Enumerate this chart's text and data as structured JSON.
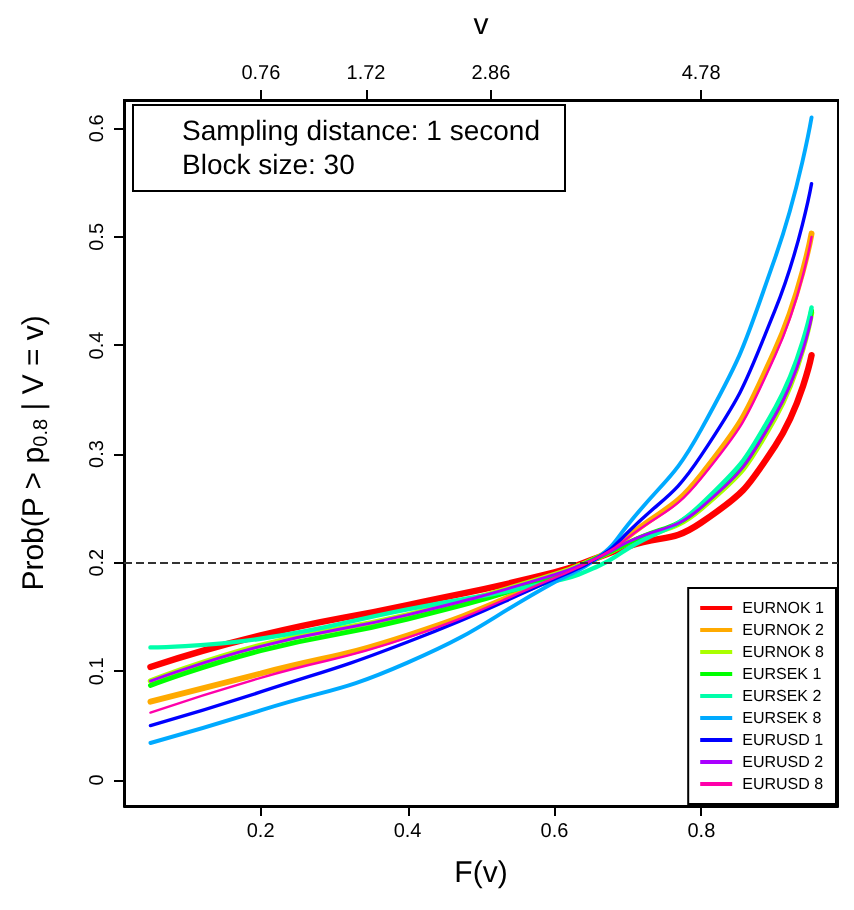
{
  "chart_data": {
    "type": "line",
    "xlabel": "F(v)",
    "ylabel": "Prob(P > p$_{0.8}$ | V = v)",
    "x2label": "v",
    "annotations": [
      "Sampling distance: 1 second",
      "Block size: 30"
    ],
    "x2lim": [
      -0.49,
      6.03
    ],
    "x2ticks": [
      0.76,
      1.72,
      2.86,
      4.78
    ],
    "x": [
      0.05,
      0.2,
      0.4,
      0.6,
      0.66,
      0.7,
      0.8,
      0.9,
      0.95
    ],
    "series": [
      {
        "name": "EURNOK 1",
        "color": "#ff0000",
        "values": [
          0.104,
          0.133,
          0.161,
          0.191,
          0.205,
          0.215,
          0.237,
          0.307,
          0.391
        ]
      },
      {
        "name": "EURNOK 2",
        "color": "#ffaa00",
        "values": [
          0.072,
          0.098,
          0.133,
          0.186,
          0.205,
          0.224,
          0.281,
          0.395,
          0.503
        ]
      },
      {
        "name": "EURNOK 8",
        "color": "#aaff00",
        "values": [
          0.091,
          0.124,
          0.152,
          0.189,
          0.205,
          0.218,
          0.25,
          0.333,
          0.43
        ]
      },
      {
        "name": "EURSEK 1",
        "color": "#00ff00",
        "values": [
          0.087,
          0.119,
          0.148,
          0.187,
          0.205,
          0.218,
          0.252,
          0.337,
          0.432
        ]
      },
      {
        "name": "EURSEK 2",
        "color": "#00ffaa",
        "values": [
          0.122,
          0.13,
          0.157,
          0.183,
          0.197,
          0.213,
          0.254,
          0.342,
          0.435
        ]
      },
      {
        "name": "EURSEK 8",
        "color": "#00aaff",
        "values": [
          0.034,
          0.064,
          0.108,
          0.182,
          0.205,
          0.235,
          0.323,
          0.48,
          0.61
        ]
      },
      {
        "name": "EURUSD 1",
        "color": "#0000ff",
        "values": [
          0.05,
          0.081,
          0.127,
          0.185,
          0.205,
          0.228,
          0.299,
          0.432,
          0.549
        ]
      },
      {
        "name": "EURUSD 2",
        "color": "#aa00ff",
        "values": [
          0.091,
          0.123,
          0.152,
          0.189,
          0.205,
          0.219,
          0.251,
          0.335,
          0.426
        ]
      },
      {
        "name": "EURUSD 8",
        "color": "#ff00aa",
        "values": [
          0.062,
          0.094,
          0.131,
          0.186,
          0.205,
          0.223,
          0.278,
          0.39,
          0.5
        ]
      }
    ],
    "xlim": [
      0.014,
      0.986
    ],
    "xticks": [
      0.2,
      0.4,
      0.6,
      0.8
    ],
    "ylim": [
      -0.024,
      0.626
    ],
    "yticks": [
      0,
      0.1,
      0.2,
      0.3,
      0.4,
      0.5,
      0.6
    ],
    "ref_lines": [
      {
        "axis": "y",
        "value": 0.2,
        "line_style": "dashed",
        "color": "#333333"
      }
    ],
    "legend": "bottom right",
    "grid": false,
    "marker": "none",
    "line_style": "solid"
  }
}
